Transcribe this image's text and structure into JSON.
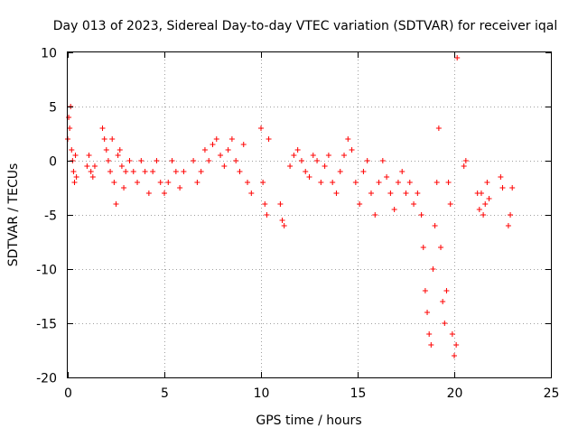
{
  "chart_data": {
    "type": "scatter",
    "title": "Day 013 of 2023, Sidereal Day-to-day VTEC variation (SDTVAR) for receiver iqal",
    "xlabel": "GPS time / hours",
    "ylabel": "SDTVAR / TECUs",
    "xlim": [
      0,
      25
    ],
    "ylim": [
      -20,
      10
    ],
    "xticks": [
      0,
      5,
      10,
      15,
      20,
      25
    ],
    "yticks": [
      -20,
      -15,
      -10,
      -5,
      0,
      5,
      10
    ],
    "xtick_labels": [
      "0",
      "5",
      "10",
      "15",
      "20",
      "25"
    ],
    "ytick_labels": [
      "-20",
      "-15",
      "-10",
      "-5",
      "0",
      "5",
      "10"
    ],
    "grid": true,
    "marker": "+",
    "series": [
      {
        "name": "iqal",
        "color": "#ff0000",
        "x": [
          0.0,
          0.05,
          0.1,
          0.15,
          0.2,
          0.25,
          0.3,
          0.35,
          0.4,
          0.45,
          1.0,
          1.1,
          1.2,
          1.3,
          1.4,
          1.8,
          1.9,
          2.0,
          2.1,
          2.2,
          2.3,
          2.4,
          2.5,
          2.6,
          2.7,
          2.8,
          2.9,
          3.0,
          3.2,
          3.4,
          3.6,
          3.8,
          4.0,
          4.2,
          4.4,
          4.6,
          4.8,
          5.0,
          5.2,
          5.4,
          5.6,
          5.8,
          6.0,
          6.5,
          6.7,
          6.9,
          7.1,
          7.3,
          7.5,
          7.7,
          7.9,
          8.1,
          8.3,
          8.5,
          8.7,
          8.9,
          9.1,
          9.3,
          9.5,
          10.0,
          10.1,
          10.2,
          10.3,
          10.4,
          11.0,
          11.1,
          11.2,
          11.5,
          11.7,
          11.9,
          12.1,
          12.3,
          12.5,
          12.7,
          12.9,
          13.1,
          13.3,
          13.5,
          13.7,
          13.9,
          14.1,
          14.3,
          14.5,
          14.7,
          14.9,
          15.1,
          15.3,
          15.5,
          15.7,
          15.9,
          16.1,
          16.3,
          16.5,
          16.7,
          16.9,
          17.1,
          17.3,
          17.5,
          17.7,
          17.9,
          18.1,
          18.3,
          18.4,
          18.5,
          18.6,
          18.7,
          18.8,
          18.9,
          19.0,
          19.1,
          19.2,
          19.3,
          19.4,
          19.5,
          19.6,
          19.7,
          19.8,
          19.9,
          20.0,
          20.1,
          20.15,
          20.5,
          20.6,
          21.2,
          21.3,
          21.4,
          21.5,
          21.6,
          21.7,
          21.8,
          22.4,
          22.5,
          22.8,
          22.9,
          23.0
        ],
        "y": [
          2.0,
          4.0,
          3.0,
          5.0,
          1.0,
          0.0,
          -1.0,
          -2.0,
          0.5,
          -1.5,
          -0.5,
          0.5,
          -1.0,
          -1.5,
          -0.5,
          3.0,
          2.0,
          1.0,
          0.0,
          -1.0,
          2.0,
          -2.0,
          -4.0,
          0.5,
          1.0,
          -0.5,
          -2.5,
          -1.0,
          0.0,
          -1.0,
          -2.0,
          0.0,
          -1.0,
          -3.0,
          -1.0,
          0.0,
          -2.0,
          -3.0,
          -2.0,
          0.0,
          -1.0,
          -2.5,
          -1.0,
          0.0,
          -2.0,
          -1.0,
          1.0,
          0.0,
          1.5,
          2.0,
          0.5,
          -0.5,
          1.0,
          2.0,
          0.0,
          -1.0,
          1.5,
          -2.0,
          -3.0,
          3.0,
          -2.0,
          -4.0,
          -5.0,
          2.0,
          -4.0,
          -5.5,
          -6.0,
          -0.5,
          0.5,
          1.0,
          0.0,
          -1.0,
          -1.5,
          0.5,
          0.0,
          -2.0,
          -0.5,
          0.5,
          -2.0,
          -3.0,
          -1.0,
          0.5,
          2.0,
          1.0,
          -2.0,
          -4.0,
          -1.0,
          0.0,
          -3.0,
          -5.0,
          -2.0,
          0.0,
          -1.5,
          -3.0,
          -4.5,
          -2.0,
          -1.0,
          -3.0,
          -2.0,
          -4.0,
          -3.0,
          -5.0,
          -8.0,
          -12.0,
          -14.0,
          -16.0,
          -17.0,
          -10.0,
          -6.0,
          -2.0,
          3.0,
          -8.0,
          -13.0,
          -15.0,
          -12.0,
          -2.0,
          -4.0,
          -16.0,
          -18.0,
          -17.0,
          9.5,
          -0.5,
          0.0,
          -3.0,
          -4.5,
          -3.0,
          -5.0,
          -4.0,
          -2.0,
          -3.5,
          -1.5,
          -2.5,
          -6.0,
          -5.0,
          -2.5
        ]
      }
    ]
  }
}
